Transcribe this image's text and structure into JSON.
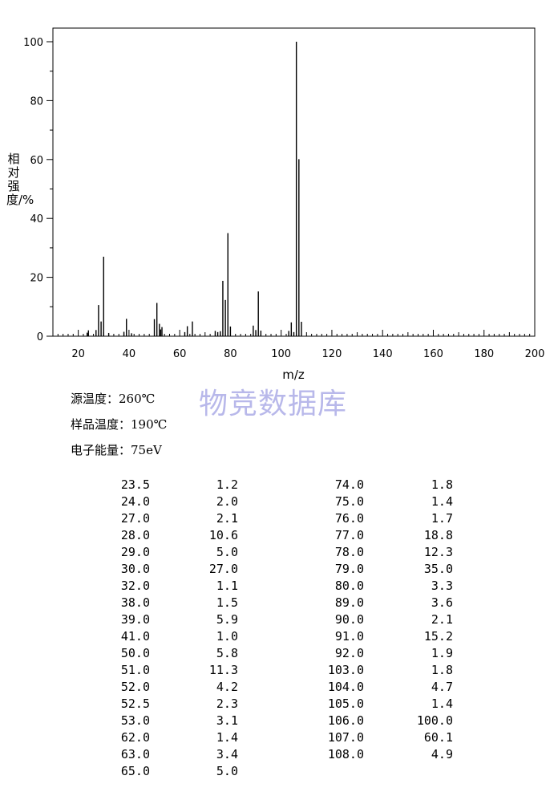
{
  "chart_data": {
    "type": "bar",
    "xlabel": "m/z",
    "ylabel": "相对强度/%",
    "xlim": [
      10,
      200
    ],
    "ylim": [
      0,
      100
    ],
    "xticks": [
      20,
      40,
      60,
      80,
      100,
      120,
      140,
      160,
      180,
      200
    ],
    "yticks": [
      0,
      20,
      40,
      60,
      80,
      100
    ],
    "x": [
      23.5,
      24.0,
      27.0,
      28.0,
      29.0,
      30.0,
      32.0,
      38.0,
      39.0,
      41.0,
      50.0,
      51.0,
      52.0,
      52.5,
      53.0,
      62.0,
      63.0,
      65.0,
      74.0,
      75.0,
      76.0,
      77.0,
      78.0,
      79.0,
      80.0,
      89.0,
      90.0,
      91.0,
      92.0,
      103.0,
      104.0,
      105.0,
      106.0,
      107.0,
      108.0
    ],
    "values": [
      1.2,
      2.0,
      2.1,
      10.6,
      5.0,
      27.0,
      1.1,
      1.5,
      5.9,
      1.0,
      5.8,
      11.3,
      4.2,
      2.3,
      3.1,
      1.4,
      3.4,
      5.0,
      1.8,
      1.4,
      1.7,
      18.8,
      12.3,
      35.0,
      3.3,
      3.6,
      2.1,
      15.2,
      1.9,
      1.8,
      4.7,
      1.4,
      100.0,
      60.1,
      4.9
    ]
  },
  "watermark": "物竞数据库",
  "conditions": {
    "source_temp": "源温度：260℃",
    "sample_temp": "样品温度：190℃",
    "electron_energy": "电子能量：75eV"
  },
  "peak_table": {
    "left": [
      [
        "23.5",
        "1.2"
      ],
      [
        "24.0",
        "2.0"
      ],
      [
        "27.0",
        "2.1"
      ],
      [
        "28.0",
        "10.6"
      ],
      [
        "29.0",
        "5.0"
      ],
      [
        "30.0",
        "27.0"
      ],
      [
        "32.0",
        "1.1"
      ],
      [
        "38.0",
        "1.5"
      ],
      [
        "39.0",
        "5.9"
      ],
      [
        "41.0",
        "1.0"
      ],
      [
        "50.0",
        "5.8"
      ],
      [
        "51.0",
        "11.3"
      ],
      [
        "52.0",
        "4.2"
      ],
      [
        "52.5",
        "2.3"
      ],
      [
        "53.0",
        "3.1"
      ],
      [
        "62.0",
        "1.4"
      ],
      [
        "63.0",
        "3.4"
      ],
      [
        "65.0",
        "5.0"
      ]
    ],
    "right": [
      [
        "74.0",
        "1.8"
      ],
      [
        "75.0",
        "1.4"
      ],
      [
        "76.0",
        "1.7"
      ],
      [
        "77.0",
        "18.8"
      ],
      [
        "78.0",
        "12.3"
      ],
      [
        "79.0",
        "35.0"
      ],
      [
        "80.0",
        "3.3"
      ],
      [
        "89.0",
        "3.6"
      ],
      [
        "90.0",
        "2.1"
      ],
      [
        "91.0",
        "15.2"
      ],
      [
        "92.0",
        "1.9"
      ],
      [
        "103.0",
        "1.8"
      ],
      [
        "104.0",
        "4.7"
      ],
      [
        "105.0",
        "1.4"
      ],
      [
        "106.0",
        "100.0"
      ],
      [
        "107.0",
        "60.1"
      ],
      [
        "108.0",
        "4.9"
      ]
    ]
  }
}
